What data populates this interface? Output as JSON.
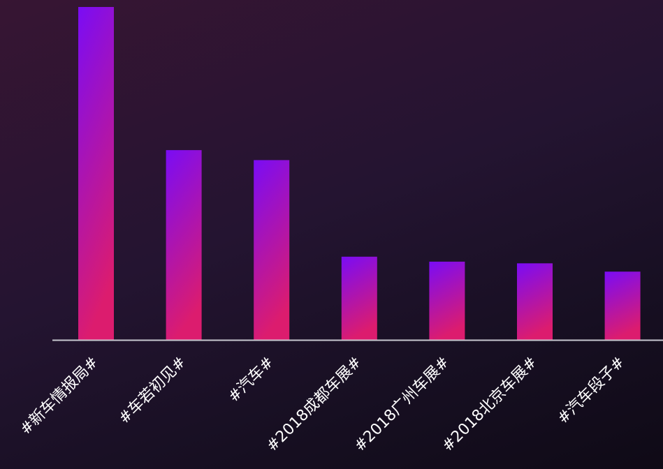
{
  "chart_data": {
    "type": "bar",
    "categories": [
      "#新车情报局#",
      "#车若初见#",
      "#汽车#",
      "#2018成都车展#",
      "#2018广州车展#",
      "#2018北京车展#",
      "#汽车段子#"
    ],
    "series": [
      {
        "values": [
          100,
          57,
          54,
          25,
          23.5,
          23,
          20.5
        ]
      }
    ],
    "ylim": [
      0,
      100
    ],
    "title": "",
    "xlabel": "",
    "ylabel": "",
    "grid": false,
    "legend": "none",
    "colors": {
      "bar_top": "#7a0cf5",
      "bar_bottom": "#dc1c6e",
      "axis": "#c8c8d0",
      "label": "#ffffff"
    }
  }
}
